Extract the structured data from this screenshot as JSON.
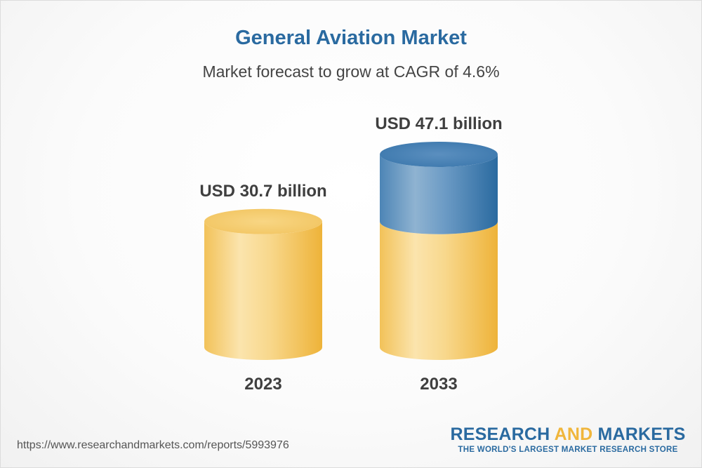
{
  "title": "General Aviation Market",
  "subtitle": "Market forecast to grow at CAGR of 4.6%",
  "source_url": "https://www.researchandmarkets.com/reports/5993976",
  "brand": {
    "name_part1": "RESEARCH",
    "name_part2": "AND",
    "name_part3": "MARKETS",
    "tagline": "THE WORLD'S LARGEST MARKET RESEARCH STORE"
  },
  "colors": {
    "title": "#2a6aa0",
    "bar_base": "#f3c25a",
    "bar_growth": "#3d7bb0",
    "text": "#3f3f3f"
  },
  "chart_data": {
    "type": "bar",
    "title": "General Aviation Market",
    "subtitle": "Market forecast to grow at CAGR of 4.6%",
    "categories": [
      "2023",
      "2033"
    ],
    "values": [
      30.7,
      47.1
    ],
    "value_labels": [
      "USD 30.7 billion",
      "USD 47.1 billion"
    ],
    "unit": "USD billion",
    "cagr_percent": 4.6,
    "xlabel": "",
    "ylabel": "",
    "ylim": [
      0,
      47.1
    ]
  }
}
